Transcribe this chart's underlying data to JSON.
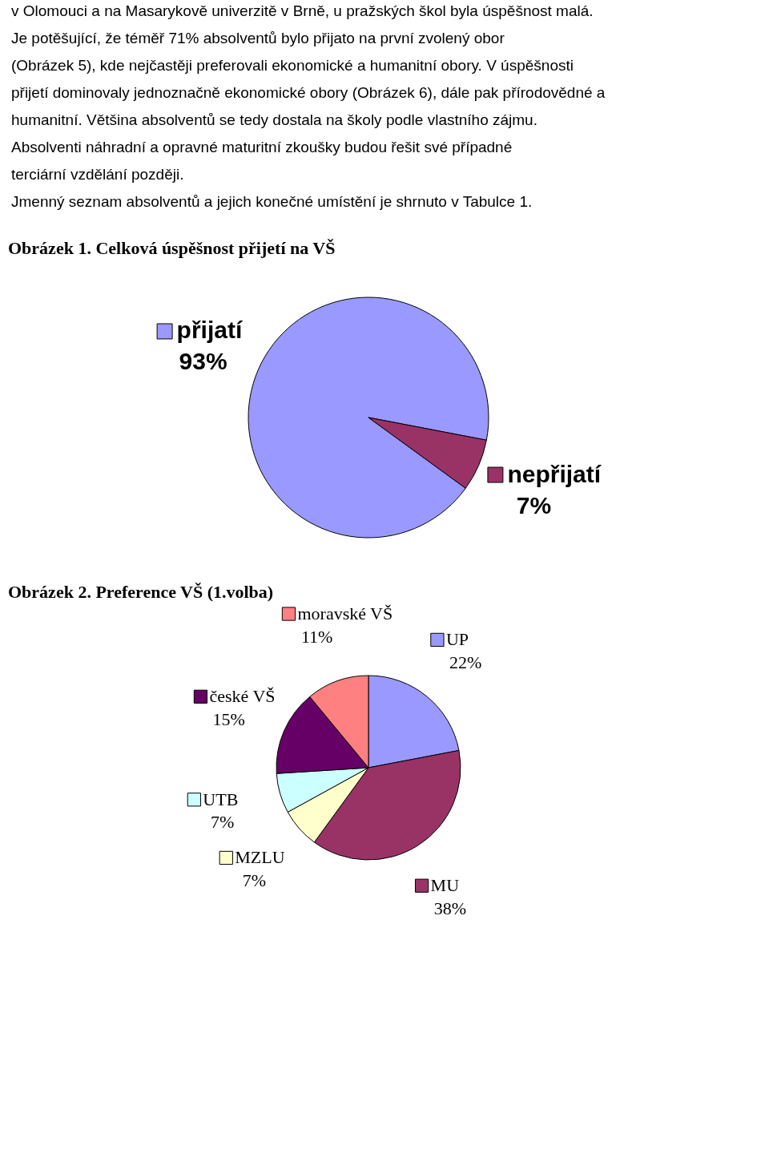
{
  "chart_data": [
    {
      "type": "pie",
      "title": "Obrázek 1. Celková úspěšnost přijetí na VŠ",
      "annotations": [
        "v Olomouci a na Masarykově univerzitě v Brně, u pražských škol byla úspěšnost malá.",
        "Je potěšující, že téměř 71% absolventů bylo přijato na první zvolený obor (Obrázek 5), kde nejčastěji preferovali ekonomické a humanitní obory. V úspěšnosti přijetí dominovaly jednoznačně ekonomické obory (Obrázek 6), dále pak přírodovědné a humanitní. Většina absolventů se tedy dostala na školy podle vlastního zájmu.",
        "Absolventi náhradní a opravné maturitní zkoušky budou řešit své případné terciární vzdělání později.",
        "Jmenný seznam absolventů a jejich konečné umístění je shrnuto v Tabulce 1."
      ],
      "categories": [
        "přijatí",
        "nepřijatí"
      ],
      "values": [
        93,
        7
      ],
      "colors": [
        "#9999ff",
        "#993366"
      ],
      "value_labels": [
        "93%",
        "7%"
      ],
      "legend": "right"
    },
    {
      "type": "pie",
      "title": "Obrázek 2. Preference VŠ (1.volba)",
      "categories": [
        "UP",
        "MU",
        "MZLU",
        "UTB",
        "české VŠ",
        "moravské VŠ"
      ],
      "values": [
        22,
        38,
        7,
        7,
        15,
        11
      ],
      "colors": [
        "#9999ff",
        "#993366",
        "#ffffcc",
        "#ccffff",
        "#660066",
        "#ff8080"
      ],
      "value_labels": [
        "22%",
        "38%",
        "7%",
        "7%",
        "15%",
        "11%"
      ],
      "legend": "top left"
    }
  ]
}
